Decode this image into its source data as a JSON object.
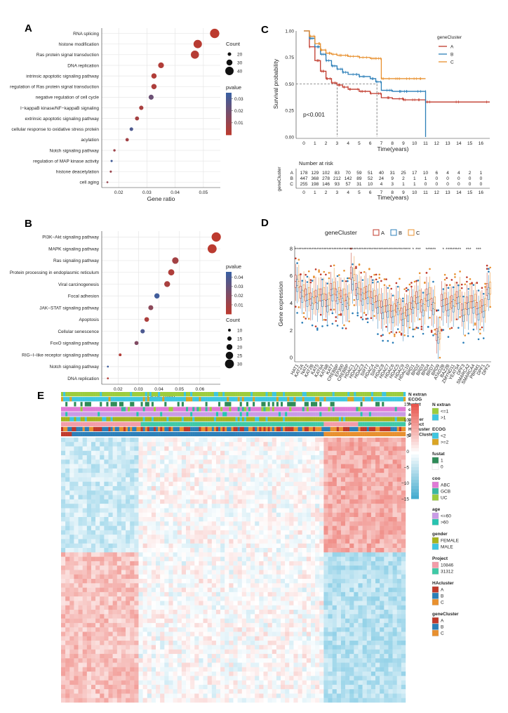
{
  "panels": {
    "A": "A",
    "B": "B",
    "C": "C",
    "D": "D",
    "E": "E"
  },
  "colors": {
    "cluster_A": "#c0392b",
    "cluster_B": "#2c7fb8",
    "cluster_C": "#e8902f",
    "grad_high": "#c0392b",
    "grad_low": "#3b5fa0"
  },
  "chart_data": [
    {
      "id": "A",
      "type": "scatter",
      "xlabel": "Gene ratio",
      "xlim": [
        0.014,
        0.056
      ],
      "xticks": [
        0.02,
        0.03,
        0.04,
        0.05
      ],
      "xtick_labels": [
        "0.02",
        "0.03",
        "0.04",
        "0.05"
      ],
      "legend_count": {
        "title": "Count",
        "values": [
          20,
          30,
          40
        ],
        "labels": [
          "20",
          "30",
          "40"
        ]
      },
      "legend_pvalue": {
        "title": "pvalue",
        "min": 0.0,
        "max": 0.035,
        "ticks": [
          0.03,
          0.02,
          0.01
        ],
        "labels": [
          "0.03",
          "0.02",
          "0.01"
        ]
      },
      "terms": [
        "RNA splicing",
        "histone modification",
        "Ras protein signal transduction",
        "DNA replication",
        "intrinsic apoptotic signaling pathway",
        "regulation of Ras protein signal transduction",
        "negative regulation of cell cycle",
        "I−kappaB kinase/NF−kappaB signaling",
        "extrinsic apoptotic signaling pathway",
        "cellular response to oxidative stress protein",
        "acylation",
        "Notch signaling pathway",
        "regulation of MAP kinase activity",
        "histone deacetylation",
        "cell aging"
      ],
      "gene_ratio": [
        0.054,
        0.048,
        0.047,
        0.035,
        0.0325,
        0.0325,
        0.0315,
        0.028,
        0.0265,
        0.0245,
        0.023,
        0.0185,
        0.0175,
        0.0172,
        0.016
      ],
      "count": [
        44,
        40,
        39,
        29,
        27,
        27,
        26,
        23,
        22,
        20,
        19,
        15,
        14,
        14,
        13
      ],
      "pvalue": [
        0.001,
        0.002,
        0.003,
        0.004,
        0.004,
        0.005,
        0.022,
        0.006,
        0.007,
        0.03,
        0.008,
        0.009,
        0.033,
        0.01,
        0.011
      ]
    },
    {
      "id": "B",
      "type": "scatter",
      "xlabel": "Gene ratio",
      "xlim": [
        0.012,
        0.07
      ],
      "xticks": [
        0.02,
        0.03,
        0.04,
        0.05,
        0.06
      ],
      "xtick_labels": [
        "0.02",
        "0.03",
        "0.04",
        "0.05",
        "0.06"
      ],
      "legend_count": {
        "title": "Count",
        "values": [
          10,
          15,
          20,
          25,
          30
        ],
        "labels": [
          "10",
          "15",
          "20",
          "25",
          "30"
        ]
      },
      "legend_pvalue": {
        "title": "pvalue",
        "min": 0.0,
        "max": 0.046,
        "ticks": [
          0.04,
          0.03,
          0.02,
          0.01
        ],
        "labels": [
          "0.04",
          "0.03",
          "0.02",
          "0.01"
        ]
      },
      "terms": [
        "PI3K−Akt signaling pathway",
        "MAPK signaling pathway",
        "Ras signaling pathway",
        "Protein processing in endoplasmic reticulum",
        "Viral carcinogenesis",
        "Focal adhesion",
        "JAK−STAT signaling pathway",
        "Apoptosis",
        "Cellular senescence",
        "FoxO signaling pathway",
        "RIG−I−like receptor signaling pathway",
        "Notch signaling pathway",
        "DNA replication"
      ],
      "gene_ratio": [
        0.068,
        0.066,
        0.048,
        0.046,
        0.044,
        0.039,
        0.036,
        0.034,
        0.032,
        0.029,
        0.021,
        0.015,
        0.015
      ],
      "count": [
        31,
        30,
        22,
        21,
        20,
        18,
        17,
        16,
        15,
        14,
        10,
        7,
        7
      ],
      "pvalue": [
        0.001,
        0.002,
        0.01,
        0.006,
        0.008,
        0.044,
        0.018,
        0.007,
        0.04,
        0.022,
        0.005,
        0.045,
        0.004
      ]
    },
    {
      "id": "C",
      "type": "line",
      "ylabel": "Survival probability",
      "xlabel": "Time(years)",
      "xlim": [
        -0.7,
        16.8
      ],
      "ylim": [
        0,
        1.0
      ],
      "xticks": [
        0,
        1,
        2,
        3,
        4,
        5,
        6,
        7,
        8,
        9,
        10,
        11,
        12,
        13,
        14,
        15,
        16
      ],
      "yticks": [
        0,
        0.25,
        0.5,
        0.75,
        1.0
      ],
      "ytick_labels": [
        "0.00",
        "0.25",
        "0.50",
        "0.75",
        "1.00"
      ],
      "pvalue_text": "p<0.001",
      "legend": {
        "title": "geneCluster",
        "items": [
          "A",
          "B",
          "C"
        ]
      },
      "series": [
        {
          "name": "A",
          "x": [
            0,
            0.5,
            1,
            1.5,
            2,
            2.5,
            3,
            3.5,
            4,
            5,
            6,
            7,
            8,
            9,
            10,
            11,
            11.5,
            16.8
          ],
          "y": [
            1.0,
            0.85,
            0.72,
            0.62,
            0.55,
            0.51,
            0.49,
            0.47,
            0.45,
            0.43,
            0.41,
            0.37,
            0.36,
            0.35,
            0.35,
            0.33,
            0.33,
            0.33
          ]
        },
        {
          "name": "B",
          "x": [
            0,
            0.5,
            1,
            1.5,
            2,
            2.5,
            3,
            3.5,
            4,
            5,
            6,
            6.5,
            7,
            8,
            9,
            10,
            11
          ],
          "y": [
            1.0,
            0.93,
            0.85,
            0.78,
            0.72,
            0.67,
            0.64,
            0.61,
            0.59,
            0.57,
            0.55,
            0.52,
            0.44,
            0.43,
            0.43,
            0.43,
            0.0
          ]
        },
        {
          "name": "C",
          "x": [
            0,
            0.5,
            1,
            1.5,
            2,
            2.5,
            3,
            3.5,
            4,
            5,
            6,
            6.5,
            7,
            8,
            9,
            10,
            11
          ],
          "y": [
            1.0,
            0.95,
            0.88,
            0.82,
            0.79,
            0.78,
            0.77,
            0.77,
            0.76,
            0.75,
            0.74,
            0.74,
            0.55,
            0.55,
            0.55,
            0.55,
            0.55
          ]
        }
      ],
      "median_lines": [
        3.0,
        6.6
      ],
      "risk_table": {
        "title": "Number at risk",
        "ylabel": "geneCluster",
        "xlabel": "Time(years)",
        "rows": [
          {
            "name": "A",
            "values": [
              "178",
              "129",
              "102",
              "83",
              "70",
              "59",
              "51",
              "40",
              "31",
              "25",
              "17",
              "10",
              "6",
              "4",
              "4",
              "2",
              "1"
            ]
          },
          {
            "name": "B",
            "values": [
              "447",
              "368",
              "278",
              "212",
              "142",
              "89",
              "52",
              "24",
              "9",
              "2",
              "1",
              "1",
              "0",
              "0",
              "0",
              "0",
              "0"
            ]
          },
          {
            "name": "C",
            "values": [
              "255",
              "198",
              "146",
              "93",
              "57",
              "31",
              "10",
              "4",
              "3",
              "1",
              "1",
              "0",
              "0",
              "0",
              "0",
              "0",
              "0"
            ]
          }
        ]
      }
    },
    {
      "id": "D",
      "type": "bar",
      "ylabel": "Gene expression",
      "ylim": [
        -0.3,
        8.2
      ],
      "yticks": [
        0,
        2,
        4,
        6,
        8
      ],
      "ytick_labels": [
        "0",
        "2",
        "4",
        "6",
        "8"
      ],
      "legend": {
        "title": "geneCluster",
        "items": [
          "A",
          "B",
          "C"
        ]
      },
      "categories": [
        "HAT1",
        "KAT2A",
        "NAT2",
        "KAT2B",
        "KAT5",
        "KAT6A",
        "KAT6B",
        "KAT7",
        "CREBBP",
        "EP300",
        "CREBBP",
        "HDAC1",
        "HDAC2",
        "HDAC3",
        "SIRT7",
        "HDAC4",
        "SIRT6",
        "HDAC8",
        "HDAC7",
        "HDAC6",
        "HDAC5",
        "HDAC9",
        "HDAC10",
        "BRD1",
        "BRD2",
        "BRD3",
        "BRD4",
        "BRDT",
        "BRD9",
        "ATAD2B",
        "BAZ2B",
        "ZMYND11",
        "YEATS4",
        "DPF3",
        "SMARCA2",
        "SMARCA4",
        "PBRM1",
        "DPF1",
        "DPF2"
      ],
      "medians": [
        [
          5.6,
          5.3,
          5.6
        ],
        [
          4.8,
          4.5,
          4.9
        ],
        [
          4.6,
          4.2,
          4.7
        ],
        [
          4.3,
          4.0,
          4.4
        ],
        [
          4.5,
          4.0,
          4.6
        ],
        [
          4.6,
          4.2,
          4.7
        ],
        [
          4.2,
          3.8,
          4.3
        ],
        [
          5.0,
          4.6,
          5.1
        ],
        [
          4.6,
          4.4,
          4.7
        ],
        [
          4.5,
          3.9,
          4.6
        ],
        [
          4.2,
          4.0,
          4.3
        ],
        [
          6.2,
          5.4,
          6.1
        ],
        [
          5.0,
          4.7,
          5.1
        ],
        [
          4.6,
          4.3,
          4.7
        ],
        [
          4.8,
          4.4,
          4.9
        ],
        [
          4.4,
          3.9,
          4.5
        ],
        [
          4.1,
          3.7,
          4.2
        ],
        [
          3.7,
          3.3,
          3.8
        ],
        [
          3.8,
          3.4,
          3.9
        ],
        [
          3.4,
          3.0,
          3.5
        ],
        [
          3.8,
          3.6,
          3.9
        ],
        [
          3.2,
          2.8,
          3.3
        ],
        [
          3.5,
          3.1,
          3.6
        ],
        [
          4.0,
          3.7,
          4.1
        ],
        [
          4.4,
          4.0,
          4.5
        ],
        [
          3.8,
          3.5,
          3.9
        ],
        [
          4.6,
          4.2,
          4.7
        ],
        [
          3.9,
          3.6,
          4.0
        ],
        [
          1.7,
          1.5,
          1.8
        ],
        [
          4.2,
          3.8,
          4.3
        ],
        [
          3.9,
          3.5,
          4.0
        ],
        [
          4.1,
          3.8,
          4.2
        ],
        [
          4.4,
          4.0,
          4.5
        ],
        [
          3.5,
          3.1,
          3.6
        ],
        [
          4.0,
          3.6,
          4.1
        ],
        [
          4.1,
          3.7,
          4.2
        ],
        [
          3.6,
          3.2,
          3.7
        ],
        [
          3.8,
          3.4,
          3.9
        ],
        [
          5.0,
          4.7,
          5.1
        ]
      ],
      "significance": [
        "***",
        "***",
        "***",
        "***",
        "***",
        "***",
        "***",
        "***",
        "***",
        "***",
        "***",
        "***",
        "***",
        "***",
        "***",
        "***",
        "***",
        "***",
        "***",
        "***",
        "***",
        "***",
        "***",
        "*",
        "***",
        "",
        "***",
        "***",
        "",
        "*",
        "***",
        "***",
        "***",
        "",
        "***",
        "",
        "***",
        "",
        ""
      ]
    },
    {
      "id": "E",
      "type": "heatmap",
      "annotation_rows": [
        "N extran",
        "ECOG",
        "fustat",
        "coo",
        "age",
        "gender",
        "Project",
        "HAcluster",
        "geneCluster"
      ],
      "color_scale": {
        "min": -15,
        "max": 15,
        "ticks": [
          15,
          10,
          5,
          0,
          -5,
          -10,
          -15
        ],
        "labels": [
          "15",
          "10",
          "5",
          "0",
          "−5",
          "−10",
          "−15"
        ]
      },
      "legends": [
        {
          "title": "N extran",
          "items": [
            {
              "label": "<=1",
              "color": "#9ccc3c"
            },
            {
              "label": ">1",
              "color": "#3ec6e0"
            }
          ]
        },
        {
          "title": "ECOG",
          "items": [
            {
              "label": "<2",
              "color": "#3ec6e0"
            },
            {
              "label": ">=2",
              "color": "#d9a424"
            }
          ]
        },
        {
          "title": "fustat",
          "items": [
            {
              "label": "1",
              "color": "#2e8b57"
            },
            {
              "label": "0",
              "color": "#ffffff"
            }
          ]
        },
        {
          "title": "coo",
          "items": [
            {
              "label": "ABC",
              "color": "#e07ad6"
            },
            {
              "label": "GCB",
              "color": "#39b7a0"
            },
            {
              "label": "UC",
              "color": "#9ccc3c"
            }
          ]
        },
        {
          "title": "age",
          "items": [
            {
              "label": "<=60",
              "color": "#c99be6"
            },
            {
              "label": ">60",
              "color": "#27c3b0"
            }
          ]
        },
        {
          "title": "gender",
          "items": [
            {
              "label": "FEMALE",
              "color": "#a5b31c"
            },
            {
              "label": "MALE",
              "color": "#3ec6e0"
            }
          ]
        },
        {
          "title": "Project",
          "items": [
            {
              "label": "10846",
              "color": "#f39ca8"
            },
            {
              "label": "31312",
              "color": "#3fc9a6"
            }
          ]
        },
        {
          "title": "HAcluster",
          "items": [
            {
              "label": "A",
              "color": "#c0392b"
            },
            {
              "label": "B",
              "color": "#2c7fb8"
            },
            {
              "label": "C",
              "color": "#e8902f"
            }
          ]
        },
        {
          "title": "geneCluster",
          "items": [
            {
              "label": "A",
              "color": "#c0392b"
            },
            {
              "label": "B",
              "color": "#2c7fb8"
            },
            {
              "label": "C",
              "color": "#e8902f"
            }
          ]
        }
      ]
    }
  ]
}
